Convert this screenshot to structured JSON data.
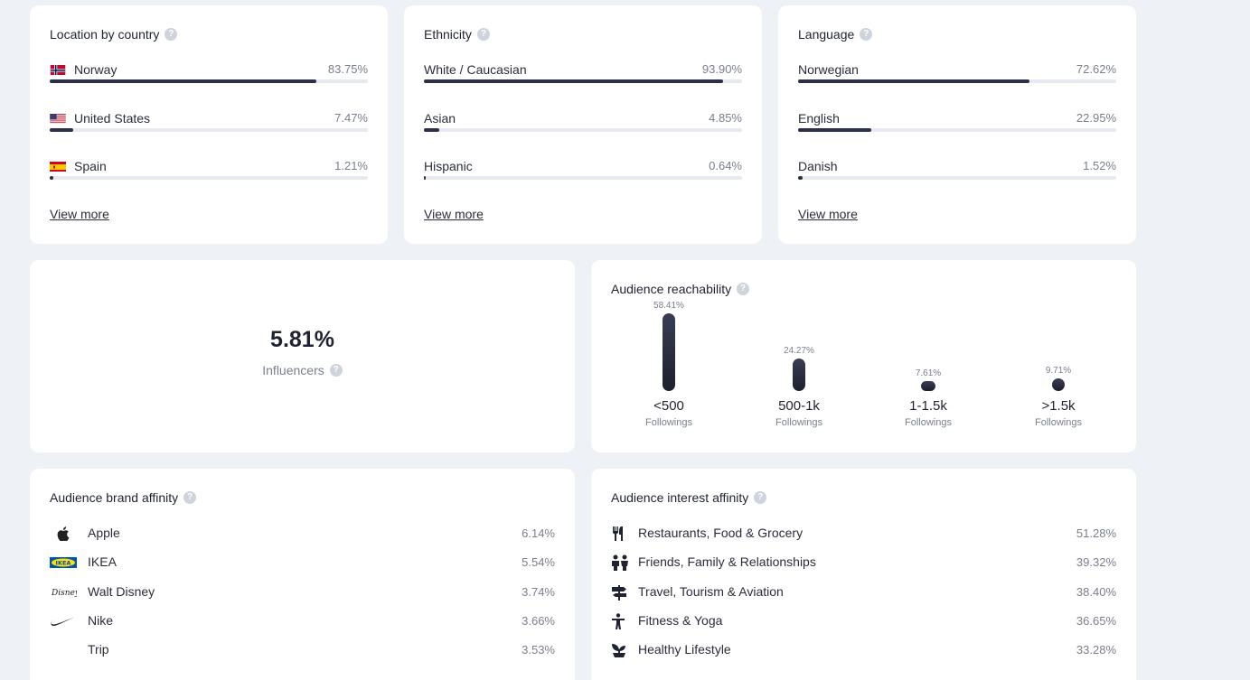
{
  "location": {
    "title": "Location by country",
    "items": [
      {
        "label": "Norway",
        "value": "83.75%",
        "percent": 83.75,
        "flag": "norway-flag-icon"
      },
      {
        "label": "United States",
        "value": "7.47%",
        "percent": 7.47,
        "flag": "us-flag-icon"
      },
      {
        "label": "Spain",
        "value": "1.21%",
        "percent": 1.21,
        "flag": "spain-flag-icon"
      }
    ],
    "view_more": "View more"
  },
  "ethnicity": {
    "title": "Ethnicity",
    "items": [
      {
        "label": "White / Caucasian",
        "value": "93.90%",
        "percent": 93.9
      },
      {
        "label": "Asian",
        "value": "4.85%",
        "percent": 4.85
      },
      {
        "label": "Hispanic",
        "value": "0.64%",
        "percent": 0.64
      }
    ],
    "view_more": "View more"
  },
  "language": {
    "title": "Language",
    "items": [
      {
        "label": "Norwegian",
        "value": "72.62%",
        "percent": 72.62
      },
      {
        "label": "English",
        "value": "22.95%",
        "percent": 22.95
      },
      {
        "label": "Danish",
        "value": "1.52%",
        "percent": 1.52
      }
    ],
    "view_more": "View more"
  },
  "influencers": {
    "value": "5.81%",
    "label": "Influencers"
  },
  "reachability": {
    "title": "Audience reachability",
    "items": [
      {
        "pct": "58.41%",
        "percent": 58.41,
        "range": "<500",
        "sub": "Followings"
      },
      {
        "pct": "24.27%",
        "percent": 24.27,
        "range": "500-1k",
        "sub": "Followings"
      },
      {
        "pct": "7.61%",
        "percent": 7.61,
        "range": "1-1.5k",
        "sub": "Followings"
      },
      {
        "pct": "9.71%",
        "percent": 9.71,
        "range": ">1.5k",
        "sub": "Followings"
      }
    ]
  },
  "brand_affinity": {
    "title": "Audience brand affinity",
    "items": [
      {
        "label": "Apple",
        "value": "6.14%",
        "icon": "apple-logo-icon"
      },
      {
        "label": "IKEA",
        "value": "5.54%",
        "icon": "ikea-logo-icon",
        "logo_text": "IKEA"
      },
      {
        "label": "Walt Disney",
        "value": "3.74%",
        "icon": "disney-logo-icon",
        "logo_text": "Disney"
      },
      {
        "label": "Nike",
        "value": "3.66%",
        "icon": "nike-swoosh-icon"
      },
      {
        "label": "Trip",
        "value": "3.53%",
        "icon": ""
      }
    ]
  },
  "interest_affinity": {
    "title": "Audience interest affinity",
    "items": [
      {
        "label": "Restaurants, Food & Grocery",
        "value": "51.28%",
        "icon": "fork-knife-icon"
      },
      {
        "label": "Friends, Family & Relationships",
        "value": "39.32%",
        "icon": "people-icon"
      },
      {
        "label": "Travel, Tourism & Aviation",
        "value": "38.40%",
        "icon": "signpost-icon"
      },
      {
        "label": "Fitness & Yoga",
        "value": "36.65%",
        "icon": "person-fitness-icon"
      },
      {
        "label": "Healthy Lifestyle",
        "value": "33.28%",
        "icon": "sprout-icon"
      }
    ]
  },
  "colors": {
    "background": "#eef1f6",
    "card": "#ffffff",
    "bar": "#2c3046",
    "track": "#e6e9ef",
    "muted_text": "#7a7f8c"
  }
}
